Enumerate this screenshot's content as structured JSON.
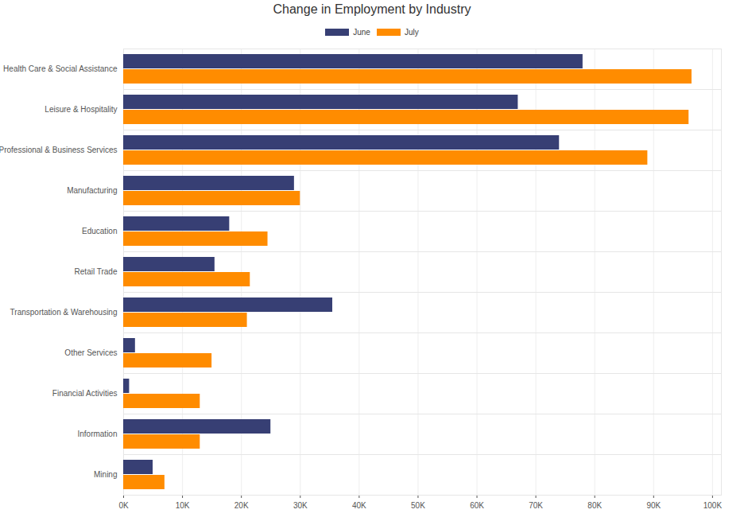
{
  "chart_data": {
    "type": "bar",
    "title": "Change in Employment by Industry",
    "orientation": "horizontal",
    "grid": true,
    "legend": "top",
    "categories": [
      "Health Care & Social Assistance",
      "Leisure & Hospitality",
      "Professional & Business Services",
      "Manufacturing",
      "Education",
      "Retail Trade",
      "Transportation & Warehousing",
      "Other Services",
      "Financial Activities",
      "Information",
      "Mining"
    ],
    "series": [
      {
        "name": "June",
        "color": "#373f74",
        "values": [
          78000,
          67000,
          74000,
          29000,
          18000,
          15500,
          35500,
          2000,
          1000,
          25000,
          5000
        ]
      },
      {
        "name": "July",
        "color": "#ff8c00",
        "values": [
          96500,
          96000,
          89000,
          30000,
          24500,
          21500,
          21000,
          15000,
          13000,
          13000,
          7000
        ]
      }
    ],
    "xlim": [
      0,
      101500
    ],
    "xticks": [
      {
        "value": 0,
        "label": "0K"
      },
      {
        "value": 10000,
        "label": "10K"
      },
      {
        "value": 20000,
        "label": "20K"
      },
      {
        "value": 30000,
        "label": "30K"
      },
      {
        "value": 40000,
        "label": "40K"
      },
      {
        "value": 50000,
        "label": "50K"
      },
      {
        "value": 60000,
        "label": "60K"
      },
      {
        "value": 70000,
        "label": "70K"
      },
      {
        "value": 80000,
        "label": "80K"
      },
      {
        "value": 90000,
        "label": "90K"
      },
      {
        "value": 100000,
        "label": "100K"
      }
    ]
  }
}
